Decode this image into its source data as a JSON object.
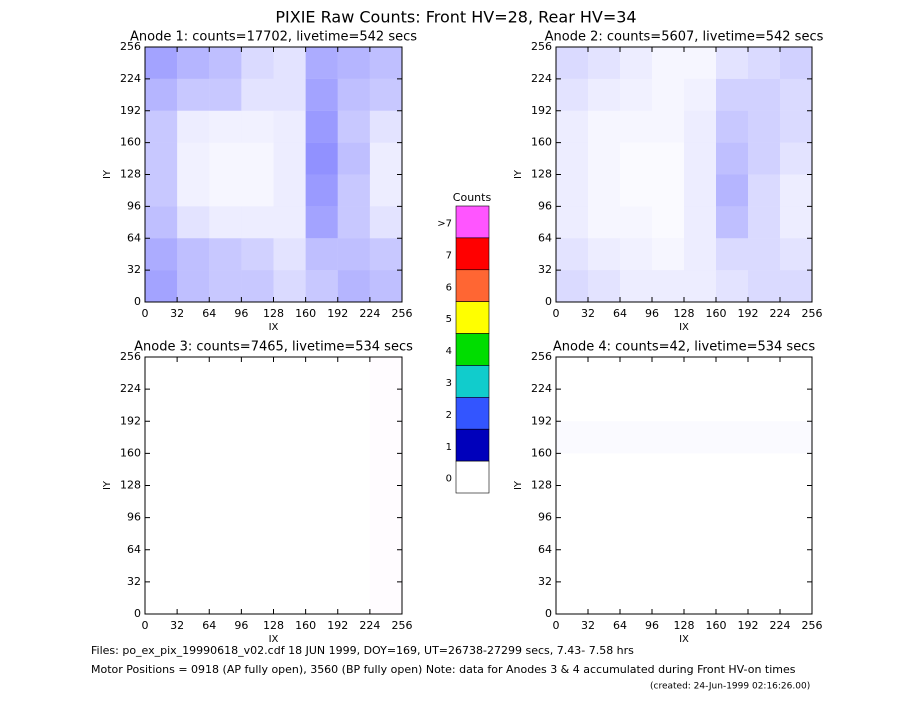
{
  "title": "PIXIE Raw Counts:  Front HV=28, Rear HV=34",
  "chart_data": [
    {
      "type": "heatmap",
      "title": "Anode 1: counts=17702, livetime=542 secs",
      "xlabel": "IX",
      "ylabel": "IY",
      "color": "#1a1aff",
      "xlim": [
        0,
        256
      ],
      "ylim": [
        0,
        256
      ],
      "xticks": [
        0,
        32,
        64,
        96,
        128,
        160,
        192,
        224,
        256
      ],
      "yticks": [
        0,
        32,
        64,
        96,
        128,
        160,
        192,
        224,
        256
      ],
      "values": [
        [
          0.5,
          0.35,
          0.3,
          0.3,
          0.2,
          0.3,
          0.4,
          0.35
        ],
        [
          0.45,
          0.35,
          0.3,
          0.25,
          0.15,
          0.35,
          0.35,
          0.3
        ],
        [
          0.35,
          0.15,
          0.1,
          0.1,
          0.1,
          0.5,
          0.3,
          0.15
        ],
        [
          0.3,
          0.08,
          0.05,
          0.05,
          0.1,
          0.55,
          0.3,
          0.1
        ],
        [
          0.3,
          0.08,
          0.05,
          0.05,
          0.1,
          0.6,
          0.35,
          0.1
        ],
        [
          0.3,
          0.1,
          0.08,
          0.08,
          0.1,
          0.55,
          0.3,
          0.15
        ],
        [
          0.4,
          0.3,
          0.3,
          0.15,
          0.15,
          0.5,
          0.35,
          0.3
        ],
        [
          0.5,
          0.4,
          0.35,
          0.2,
          0.15,
          0.45,
          0.4,
          0.35
        ]
      ]
    },
    {
      "type": "heatmap",
      "title": "Anode 2: counts=5607, livetime=542 secs",
      "xlabel": "IX",
      "ylabel": "IY",
      "color": "#1a1aff",
      "xlim": [
        0,
        256
      ],
      "ylim": [
        0,
        256
      ],
      "xticks": [
        0,
        32,
        64,
        96,
        128,
        160,
        192,
        224,
        256
      ],
      "yticks": [
        0,
        32,
        64,
        96,
        128,
        160,
        192,
        224,
        256
      ],
      "values": [
        [
          0.2,
          0.15,
          0.1,
          0.1,
          0.1,
          0.15,
          0.2,
          0.2
        ],
        [
          0.15,
          0.1,
          0.08,
          0.05,
          0.1,
          0.2,
          0.2,
          0.15
        ],
        [
          0.1,
          0.05,
          0.05,
          0.03,
          0.1,
          0.35,
          0.2,
          0.1
        ],
        [
          0.1,
          0.05,
          0.03,
          0.03,
          0.1,
          0.4,
          0.2,
          0.1
        ],
        [
          0.1,
          0.05,
          0.03,
          0.03,
          0.1,
          0.35,
          0.25,
          0.15
        ],
        [
          0.1,
          0.05,
          0.05,
          0.05,
          0.1,
          0.3,
          0.25,
          0.2
        ],
        [
          0.15,
          0.1,
          0.08,
          0.05,
          0.08,
          0.25,
          0.25,
          0.2
        ],
        [
          0.2,
          0.15,
          0.1,
          0.05,
          0.05,
          0.15,
          0.2,
          0.25
        ]
      ]
    },
    {
      "type": "heatmap",
      "title": "Anode 3: counts=7465, livetime=534 secs",
      "xlabel": "IX",
      "ylabel": "IY",
      "color": "#ff55ff",
      "xlim": [
        0,
        256
      ],
      "ylim": [
        0,
        256
      ],
      "xticks": [
        0,
        32,
        64,
        96,
        128,
        160,
        192,
        224,
        256
      ],
      "yticks": [
        0,
        32,
        64,
        96,
        128,
        160,
        192,
        224,
        256
      ],
      "values": [
        [
          0,
          0,
          0,
          0,
          0,
          0,
          0,
          0.02
        ],
        [
          0,
          0,
          0,
          0,
          0,
          0,
          0,
          0.02
        ],
        [
          0,
          0,
          0,
          0,
          0,
          0,
          0,
          0.02
        ],
        [
          0,
          0,
          0,
          0,
          0,
          0,
          0,
          0.02
        ],
        [
          0,
          0,
          0,
          0,
          0,
          0,
          0,
          0.02
        ],
        [
          0,
          0,
          0,
          0,
          0,
          0,
          0,
          0.02
        ],
        [
          0,
          0,
          0,
          0,
          0,
          0,
          0,
          0.02
        ],
        [
          0,
          0,
          0,
          0,
          0,
          0,
          0,
          0.02
        ]
      ]
    },
    {
      "type": "heatmap",
      "title": "Anode 4: counts=42, livetime=534 secs",
      "xlabel": "IX",
      "ylabel": "IY",
      "color": "#1a1aff",
      "xlim": [
        0,
        256
      ],
      "ylim": [
        0,
        256
      ],
      "xticks": [
        0,
        32,
        64,
        96,
        128,
        160,
        192,
        224,
        256
      ],
      "yticks": [
        0,
        32,
        64,
        96,
        128,
        160,
        192,
        224,
        256
      ],
      "values": [
        [
          0,
          0,
          0,
          0,
          0,
          0,
          0,
          0
        ],
        [
          0,
          0,
          0,
          0,
          0,
          0,
          0,
          0
        ],
        [
          0,
          0,
          0,
          0,
          0,
          0,
          0,
          0
        ],
        [
          0,
          0,
          0,
          0,
          0,
          0,
          0,
          0
        ],
        [
          0,
          0,
          0,
          0,
          0,
          0,
          0,
          0
        ],
        [
          0.03,
          0.03,
          0.03,
          0.03,
          0.03,
          0.03,
          0.03,
          0.03
        ],
        [
          0,
          0,
          0,
          0,
          0,
          0,
          0,
          0
        ],
        [
          0,
          0,
          0,
          0,
          0,
          0,
          0,
          0
        ]
      ]
    }
  ],
  "colorbar": {
    "title": "Counts",
    "labels": [
      ">7",
      "7",
      "6",
      "5",
      "4",
      "3",
      "2",
      "1",
      "0"
    ],
    "colors": [
      "#ff55ff",
      "#ff0000",
      "#ff6633",
      "#ffff00",
      "#00dd00",
      "#11cccc",
      "#3355ff",
      "#0000bb",
      "#ffffff"
    ]
  },
  "footer": [
    "Files: po_ex_pix_19990618_v02.cdf    18 JUN 1999, DOY=169, UT=26738-27299 secs,  7.43- 7.58 hrs",
    "Motor Positions = 0918 (AP fully open), 3560 (BP fully open)    Note: data for Anodes 3 & 4 accumulated during Front HV-on times",
    "(created: 24-Jun-1999 02:16:26.00)"
  ]
}
